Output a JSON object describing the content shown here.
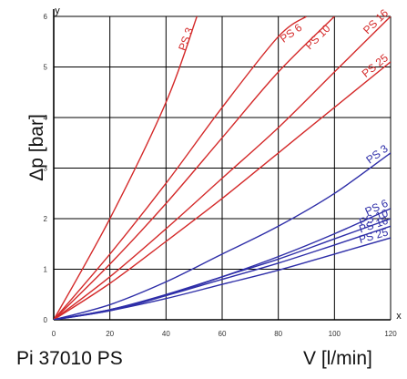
{
  "caption": "Pi 37010 PS",
  "chart_data": {
    "type": "line",
    "xlabel": "V [l/min]",
    "ylabel": "Δp [bar]",
    "x_axis_letter": "x",
    "y_axis_letter": "y",
    "xlim": [
      0,
      120
    ],
    "ylim": [
      0,
      6
    ],
    "xticks": [
      0,
      20,
      40,
      60,
      80,
      100,
      120
    ],
    "yticks": [
      0,
      1,
      2,
      3,
      4,
      5,
      6
    ],
    "grid": true,
    "colors": {
      "red": "#d42a2a",
      "blue": "#2e2ea8",
      "grid": "#000000"
    },
    "series": [
      {
        "name": "PS 3",
        "color": "red",
        "x": [
          0,
          20,
          40,
          51
        ],
        "y": [
          0,
          2.0,
          4.3,
          6.0
        ]
      },
      {
        "name": "PS 6",
        "color": "red",
        "x": [
          0,
          20,
          40,
          60,
          80,
          90
        ],
        "y": [
          0,
          1.3,
          2.7,
          4.2,
          5.6,
          6.0
        ]
      },
      {
        "name": "PS 10",
        "color": "red",
        "x": [
          0,
          20,
          40,
          60,
          80,
          100
        ],
        "y": [
          0,
          1.1,
          2.3,
          3.6,
          4.9,
          6.0
        ]
      },
      {
        "name": "PS 16",
        "color": "red",
        "x": [
          0,
          20,
          40,
          60,
          80,
          100,
          120
        ],
        "y": [
          0,
          0.85,
          1.8,
          2.8,
          3.8,
          4.9,
          6.0
        ]
      },
      {
        "name": "PS 25",
        "color": "red",
        "x": [
          0,
          20,
          40,
          60,
          80,
          100,
          120
        ],
        "y": [
          0,
          0.72,
          1.55,
          2.4,
          3.3,
          4.2,
          5.1
        ]
      },
      {
        "name": "PS 3",
        "color": "blue",
        "x": [
          0,
          20,
          40,
          60,
          80,
          100,
          120
        ],
        "y": [
          0,
          0.3,
          0.75,
          1.3,
          1.85,
          2.5,
          3.3
        ]
      },
      {
        "name": "PS 6",
        "color": "blue",
        "x": [
          0,
          20,
          40,
          60,
          80,
          100,
          120
        ],
        "y": [
          0,
          0.18,
          0.48,
          0.85,
          1.25,
          1.7,
          2.2
        ]
      },
      {
        "name": "PS 10",
        "color": "blue",
        "x": [
          0,
          20,
          40,
          60,
          80,
          100,
          120
        ],
        "y": [
          0,
          0.2,
          0.5,
          0.85,
          1.2,
          1.6,
          2.0
        ]
      },
      {
        "name": "PS 16",
        "color": "blue",
        "x": [
          0,
          20,
          40,
          60,
          80,
          100,
          120
        ],
        "y": [
          0,
          0.2,
          0.48,
          0.8,
          1.12,
          1.48,
          1.85
        ]
      },
      {
        "name": "PS 25",
        "color": "blue",
        "x": [
          0,
          20,
          40,
          60,
          80,
          100,
          120
        ],
        "y": [
          0,
          0.18,
          0.42,
          0.7,
          0.98,
          1.3,
          1.62
        ]
      }
    ]
  }
}
